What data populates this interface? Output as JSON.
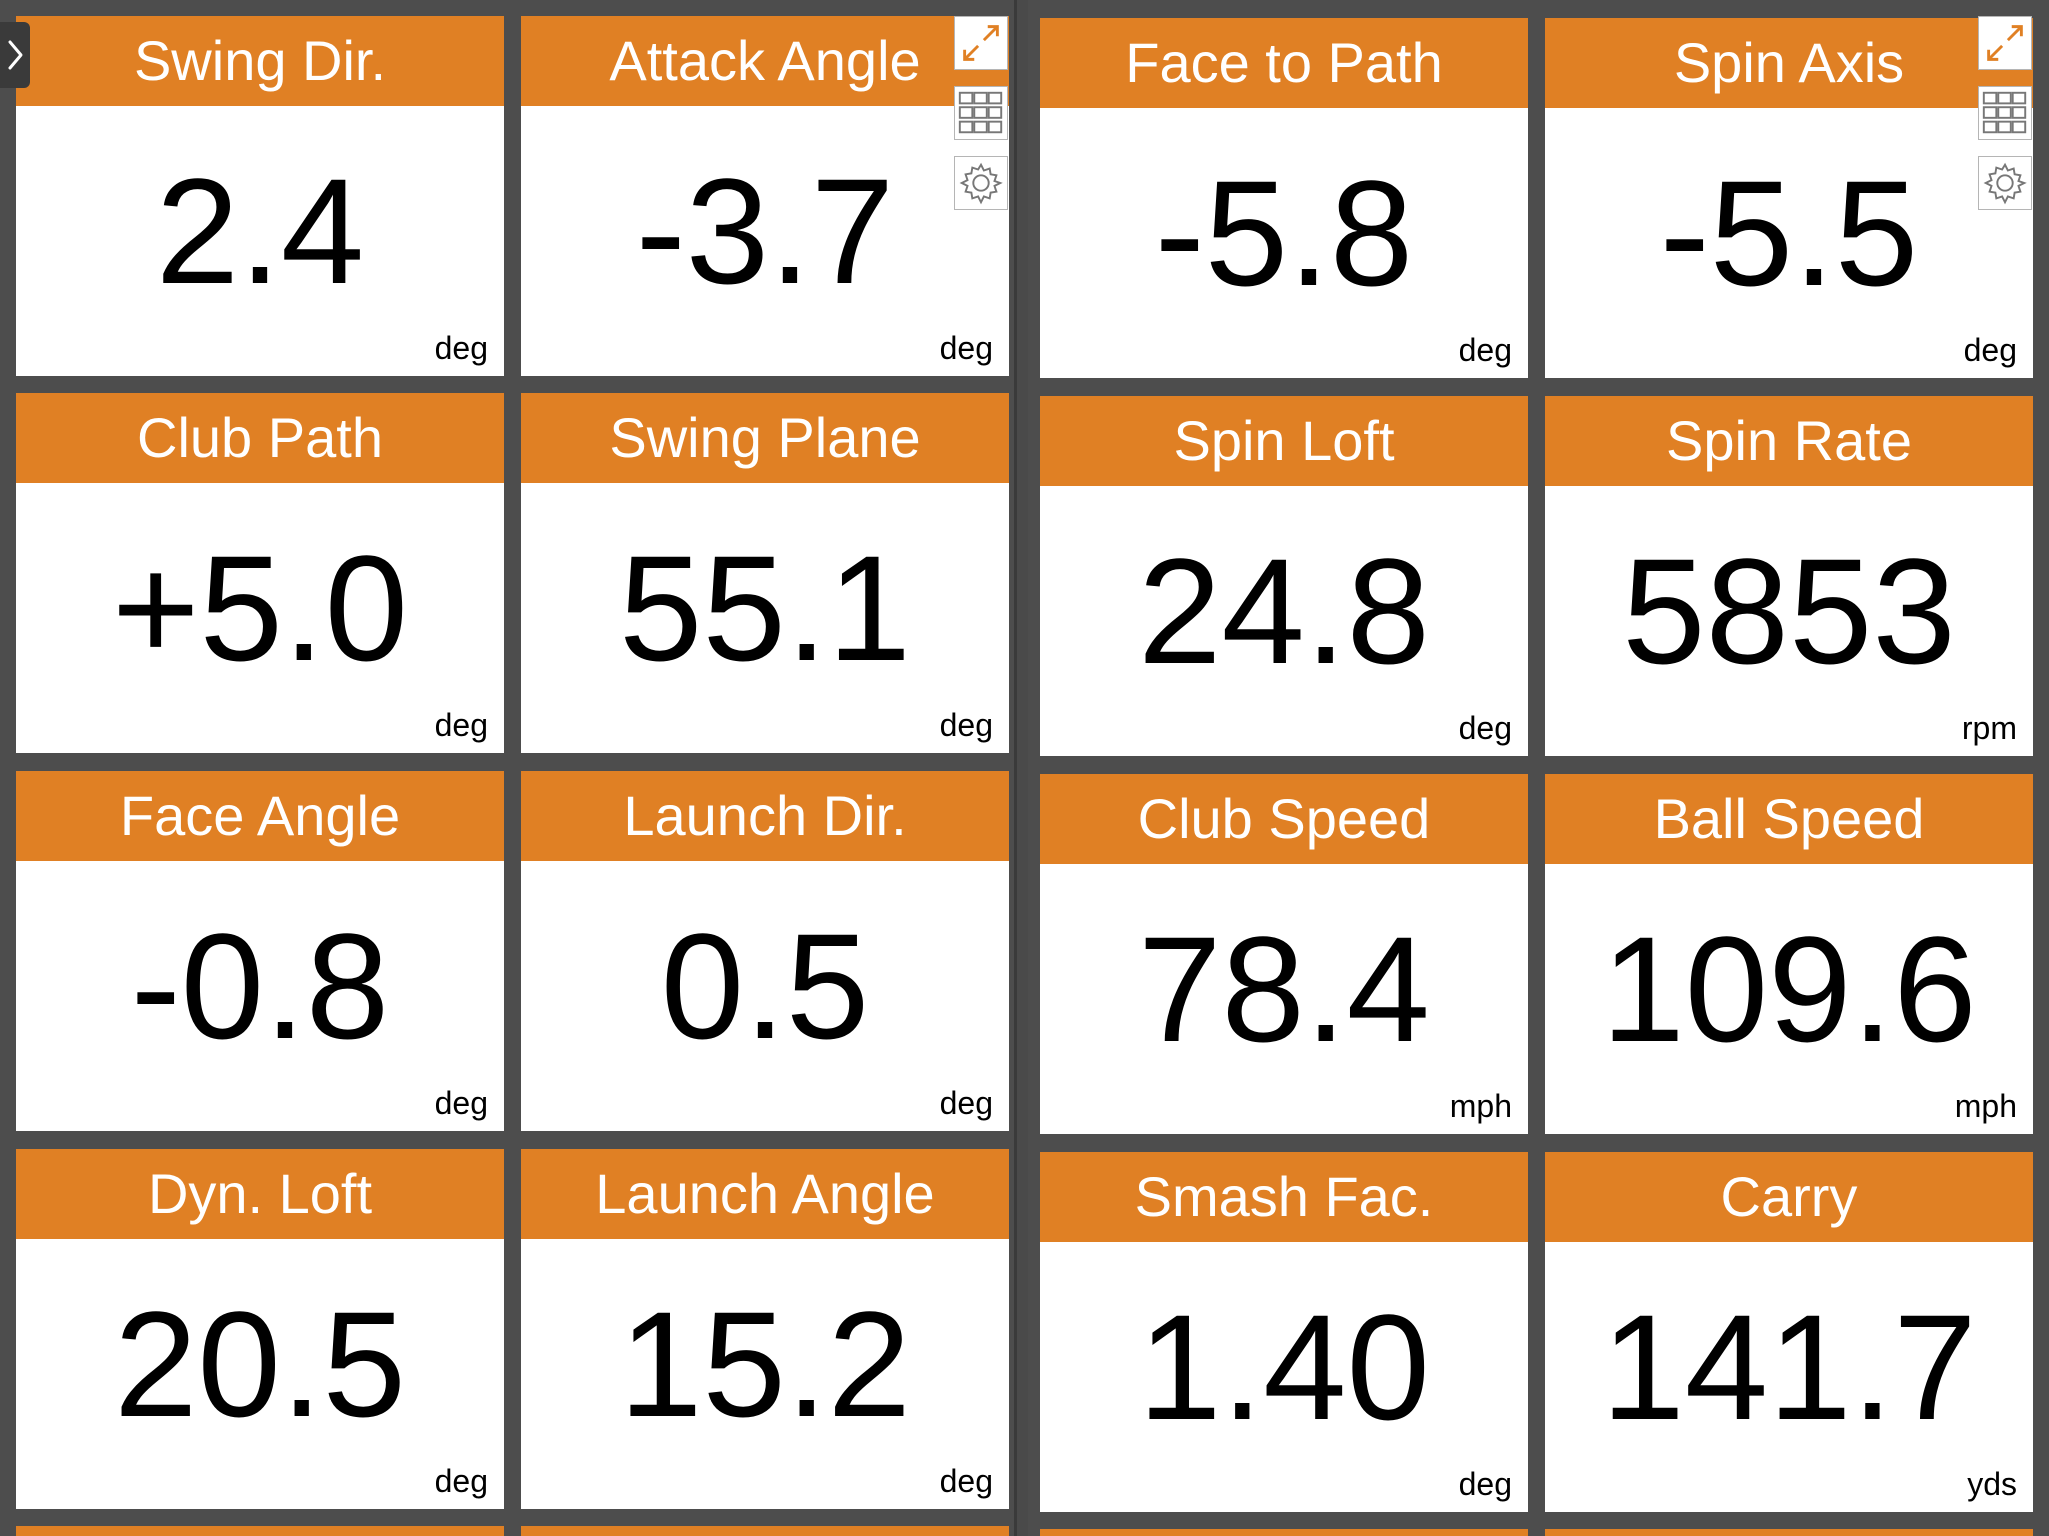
{
  "tiles": [
    {
      "title": "Swing Dir.",
      "value": "2.4",
      "unit": "deg"
    },
    {
      "title": "Attack Angle",
      "value": "-3.7",
      "unit": "deg"
    },
    {
      "title": "Face to Path",
      "value": "-5.8",
      "unit": "deg"
    },
    {
      "title": "Spin Axis",
      "value": "-5.5",
      "unit": "deg"
    },
    {
      "title": "Club Path",
      "value": "+5.0",
      "unit": "deg"
    },
    {
      "title": "Swing Plane",
      "value": "55.1",
      "unit": "deg"
    },
    {
      "title": "Spin Loft",
      "value": "24.8",
      "unit": "deg"
    },
    {
      "title": "Spin Rate",
      "value": "5853",
      "unit": "rpm"
    },
    {
      "title": "Face Angle",
      "value": "-0.8",
      "unit": "deg"
    },
    {
      "title": "Launch Dir.",
      "value": "0.5",
      "unit": "deg"
    },
    {
      "title": "Club Speed",
      "value": "78.4",
      "unit": "mph"
    },
    {
      "title": "Ball Speed",
      "value": "109.6",
      "unit": "mph"
    },
    {
      "title": "Dyn. Loft",
      "value": "20.5",
      "unit": "deg"
    },
    {
      "title": "Launch Angle",
      "value": "15.2",
      "unit": "deg"
    },
    {
      "title": "Smash Fac.",
      "value": "1.40",
      "unit": "deg"
    },
    {
      "title": "Carry",
      "value": "141.7",
      "unit": "yds"
    }
  ],
  "icons": {
    "sidebar_toggle": "chevron-right-icon",
    "expand": "expand-arrows-icon",
    "grid": "grid-icon",
    "settings": "gear-icon"
  },
  "colors": {
    "header": "#e08024",
    "background": "#4d4d4d",
    "tile": "#ffffff",
    "text": "#000000"
  }
}
